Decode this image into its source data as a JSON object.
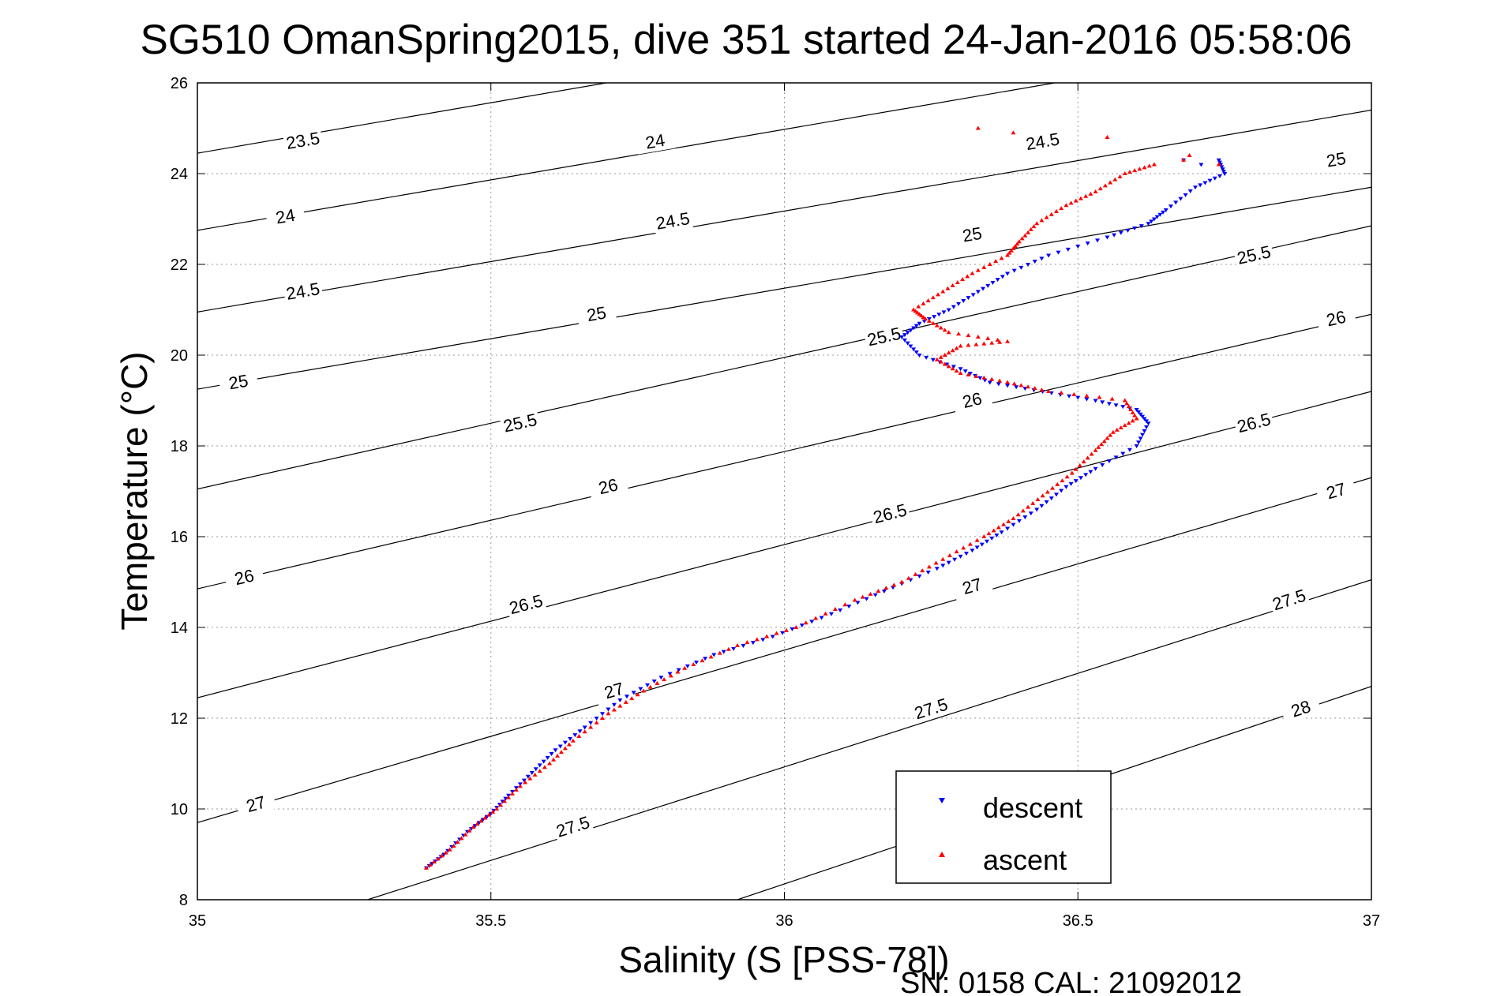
{
  "chart_data": {
    "type": "scatter",
    "title": "SG510 OmanSpring2015, dive 351 started 24-Jan-2016 05:58:06",
    "xlabel": "Salinity (S [PSS-78])",
    "ylabel": "Temperature (°C)",
    "xlim": [
      35,
      37
    ],
    "ylim": [
      8,
      26
    ],
    "xticks": [
      35,
      35.5,
      36,
      36.5,
      37
    ],
    "xtick_labels": [
      "35",
      "35.5",
      "36",
      "36.5",
      "37"
    ],
    "yticks": [
      8,
      10,
      12,
      14,
      16,
      18,
      20,
      22,
      24,
      26
    ],
    "ytick_labels": [
      "8",
      "10",
      "12",
      "14",
      "16",
      "18",
      "20",
      "22",
      "24",
      "26"
    ],
    "grid": true,
    "legend_position": "lower-right",
    "series": [
      {
        "name": "descent",
        "color": "#0000ff",
        "marker": "triangle-down",
        "points": [
          [
            35.39,
            8.7
          ],
          [
            35.42,
            9.0
          ],
          [
            35.46,
            9.5
          ],
          [
            35.5,
            9.9
          ],
          [
            35.53,
            10.3
          ],
          [
            35.57,
            10.8
          ],
          [
            35.61,
            11.3
          ],
          [
            35.66,
            11.8
          ],
          [
            35.72,
            12.4
          ],
          [
            35.79,
            12.9
          ],
          [
            35.88,
            13.4
          ],
          [
            35.98,
            13.8
          ],
          [
            36.08,
            14.3
          ],
          [
            36.17,
            14.8
          ],
          [
            36.26,
            15.3
          ],
          [
            36.32,
            15.7
          ],
          [
            36.37,
            16.1
          ],
          [
            36.43,
            16.6
          ],
          [
            36.48,
            17.1
          ],
          [
            36.53,
            17.5
          ],
          [
            36.6,
            18.0
          ],
          [
            36.62,
            18.5
          ],
          [
            36.6,
            18.8
          ],
          [
            36.53,
            19.0
          ],
          [
            36.44,
            19.2
          ],
          [
            36.35,
            19.4
          ],
          [
            36.3,
            19.7
          ],
          [
            36.23,
            20.0
          ],
          [
            36.2,
            20.4
          ],
          [
            36.23,
            20.7
          ],
          [
            36.28,
            21.0
          ],
          [
            36.33,
            21.4
          ],
          [
            36.38,
            21.8
          ],
          [
            36.45,
            22.2
          ],
          [
            36.55,
            22.6
          ],
          [
            36.62,
            22.9
          ],
          [
            36.65,
            23.2
          ],
          [
            36.7,
            23.7
          ],
          [
            36.75,
            24.0
          ],
          [
            36.74,
            24.3
          ],
          [
            36.71,
            24.2
          ],
          [
            36.68,
            24.3
          ]
        ]
      },
      {
        "name": "ascent",
        "color": "#ff0000",
        "marker": "triangle-up",
        "points": [
          [
            35.39,
            8.7
          ],
          [
            35.43,
            9.1
          ],
          [
            35.47,
            9.6
          ],
          [
            35.51,
            10.0
          ],
          [
            35.55,
            10.5
          ],
          [
            35.6,
            11.0
          ],
          [
            35.64,
            11.5
          ],
          [
            35.7,
            12.1
          ],
          [
            35.76,
            12.6
          ],
          [
            35.83,
            13.1
          ],
          [
            35.92,
            13.6
          ],
          [
            36.02,
            14.0
          ],
          [
            36.12,
            14.6
          ],
          [
            36.2,
            15.0
          ],
          [
            36.27,
            15.5
          ],
          [
            36.34,
            16.0
          ],
          [
            36.39,
            16.4
          ],
          [
            36.44,
            16.9
          ],
          [
            36.49,
            17.4
          ],
          [
            36.53,
            17.9
          ],
          [
            36.56,
            18.3
          ],
          [
            36.6,
            18.6
          ],
          [
            36.58,
            19.0
          ],
          [
            36.45,
            19.2
          ],
          [
            36.38,
            19.4
          ],
          [
            36.3,
            19.6
          ],
          [
            36.26,
            19.9
          ],
          [
            36.3,
            20.2
          ],
          [
            36.38,
            20.3
          ],
          [
            36.28,
            20.5
          ],
          [
            36.24,
            20.8
          ],
          [
            36.22,
            21.0
          ],
          [
            36.27,
            21.4
          ],
          [
            36.32,
            21.8
          ],
          [
            36.38,
            22.2
          ],
          [
            36.4,
            22.5
          ],
          [
            36.43,
            22.9
          ],
          [
            36.48,
            23.3
          ],
          [
            36.53,
            23.6
          ],
          [
            36.58,
            24.0
          ],
          [
            36.63,
            24.2
          ],
          [
            36.68,
            24.3
          ],
          [
            36.69,
            24.4
          ],
          [
            36.74,
            24.2
          ],
          [
            36.33,
            25.0
          ],
          [
            36.39,
            24.9
          ],
          [
            36.55,
            24.8
          ]
        ]
      }
    ],
    "contours": [
      {
        "label": "23.5",
        "points": [
          [
            35.0,
            24.45
          ],
          [
            37.0,
            28.9
          ]
        ],
        "label_pos": [
          35.18,
          24.72
        ]
      },
      {
        "label": "24",
        "points": [
          [
            35.0,
            22.75
          ],
          [
            37.0,
            27.2
          ]
        ],
        "label_pos": [
          35.15,
          23.05
        ]
      },
      {
        "label": "24",
        "points": [
          [
            35.0,
            22.75
          ],
          [
            37.0,
            27.2
          ]
        ],
        "label_pos": [
          35.78,
          24.7
        ]
      },
      {
        "label": "24.5",
        "points": [
          [
            35.0,
            20.95
          ],
          [
            37.0,
            25.4
          ]
        ],
        "label_pos": [
          35.18,
          21.4
        ]
      },
      {
        "label": "24.5",
        "points": [
          [
            35.0,
            20.95
          ],
          [
            37.0,
            25.4
          ]
        ],
        "label_pos": [
          35.81,
          22.95
        ]
      },
      {
        "label": "24.5",
        "points": [
          [
            35.0,
            20.95
          ],
          [
            37.0,
            25.4
          ]
        ],
        "label_pos": [
          36.44,
          24.7
        ]
      },
      {
        "label": "25",
        "points": [
          [
            35.0,
            19.25
          ],
          [
            37.0,
            23.7
          ]
        ],
        "label_pos": [
          35.07,
          19.4
        ]
      },
      {
        "label": "25",
        "points": [
          [
            35.0,
            19.25
          ],
          [
            37.0,
            23.7
          ]
        ],
        "label_pos": [
          35.68,
          20.9
        ]
      },
      {
        "label": "25",
        "points": [
          [
            35.0,
            19.25
          ],
          [
            37.0,
            23.7
          ]
        ],
        "label_pos": [
          36.32,
          22.65
        ]
      },
      {
        "label": "25",
        "points": [
          [
            35.0,
            19.25
          ],
          [
            37.0,
            23.7
          ]
        ],
        "label_pos": [
          36.94,
          24.3
        ]
      },
      {
        "label": "25.5",
        "points": [
          [
            35.0,
            17.05
          ],
          [
            37.0,
            22.85
          ]
        ],
        "label_pos": [
          35.55,
          18.5
        ]
      },
      {
        "label": "25.5",
        "points": [
          [
            35.0,
            17.05
          ],
          [
            37.0,
            22.85
          ]
        ],
        "label_pos": [
          36.17,
          20.4
        ]
      },
      {
        "label": "25.5",
        "points": [
          [
            35.0,
            17.05
          ],
          [
            37.0,
            22.85
          ]
        ],
        "label_pos": [
          36.8,
          22.2
        ]
      },
      {
        "label": "26",
        "points": [
          [
            35.0,
            14.85
          ],
          [
            37.0,
            20.9
          ]
        ],
        "label_pos": [
          35.08,
          15.1
        ]
      },
      {
        "label": "26",
        "points": [
          [
            35.0,
            14.85
          ],
          [
            37.0,
            20.9
          ]
        ],
        "label_pos": [
          35.7,
          17.1
        ]
      },
      {
        "label": "26",
        "points": [
          [
            35.0,
            14.85
          ],
          [
            37.0,
            20.9
          ]
        ],
        "label_pos": [
          36.32,
          19.0
        ]
      },
      {
        "label": "26",
        "points": [
          [
            35.0,
            14.85
          ],
          [
            37.0,
            20.9
          ]
        ],
        "label_pos": [
          36.94,
          20.8
        ]
      },
      {
        "label": "26.5",
        "points": [
          [
            35.0,
            12.45
          ],
          [
            37.0,
            19.2
          ]
        ],
        "label_pos": [
          35.56,
          14.5
        ]
      },
      {
        "label": "26.5",
        "points": [
          [
            35.0,
            12.45
          ],
          [
            37.0,
            19.2
          ]
        ],
        "label_pos": [
          36.18,
          16.5
        ]
      },
      {
        "label": "26.5",
        "points": [
          [
            35.0,
            12.45
          ],
          [
            37.0,
            19.2
          ]
        ],
        "label_pos": [
          36.8,
          18.5
        ]
      },
      {
        "label": "27",
        "points": [
          [
            35.0,
            9.7
          ],
          [
            37.0,
            17.3
          ]
        ],
        "label_pos": [
          35.1,
          10.1
        ]
      },
      {
        "label": "27",
        "points": [
          [
            35.0,
            9.7
          ],
          [
            37.0,
            17.3
          ]
        ],
        "label_pos": [
          35.71,
          12.6
        ]
      },
      {
        "label": "27",
        "points": [
          [
            35.0,
            9.7
          ],
          [
            37.0,
            17.3
          ]
        ],
        "label_pos": [
          36.32,
          14.9
        ]
      },
      {
        "label": "27",
        "points": [
          [
            35.0,
            9.7
          ],
          [
            37.0,
            17.3
          ]
        ],
        "label_pos": [
          36.94,
          17.0
        ]
      },
      {
        "label": "27.5",
        "points": [
          [
            35.29,
            8.0
          ],
          [
            37.0,
            15.05
          ]
        ],
        "label_pos": [
          35.64,
          9.6
        ]
      },
      {
        "label": "27.5",
        "points": [
          [
            35.29,
            8.0
          ],
          [
            37.0,
            15.05
          ]
        ],
        "label_pos": [
          36.25,
          12.2
        ]
      },
      {
        "label": "27.5",
        "points": [
          [
            35.29,
            8.0
          ],
          [
            37.0,
            15.05
          ]
        ],
        "label_pos": [
          36.86,
          14.6
        ]
      },
      {
        "label": "28",
        "points": [
          [
            35.92,
            8.0
          ],
          [
            37.0,
            12.7
          ]
        ],
        "label_pos": [
          36.88,
          12.2
        ]
      }
    ]
  },
  "legend": {
    "descent_label": "descent",
    "ascent_label": "ascent"
  },
  "footer": {
    "text": "SN: 0158  CAL: 21092012"
  }
}
